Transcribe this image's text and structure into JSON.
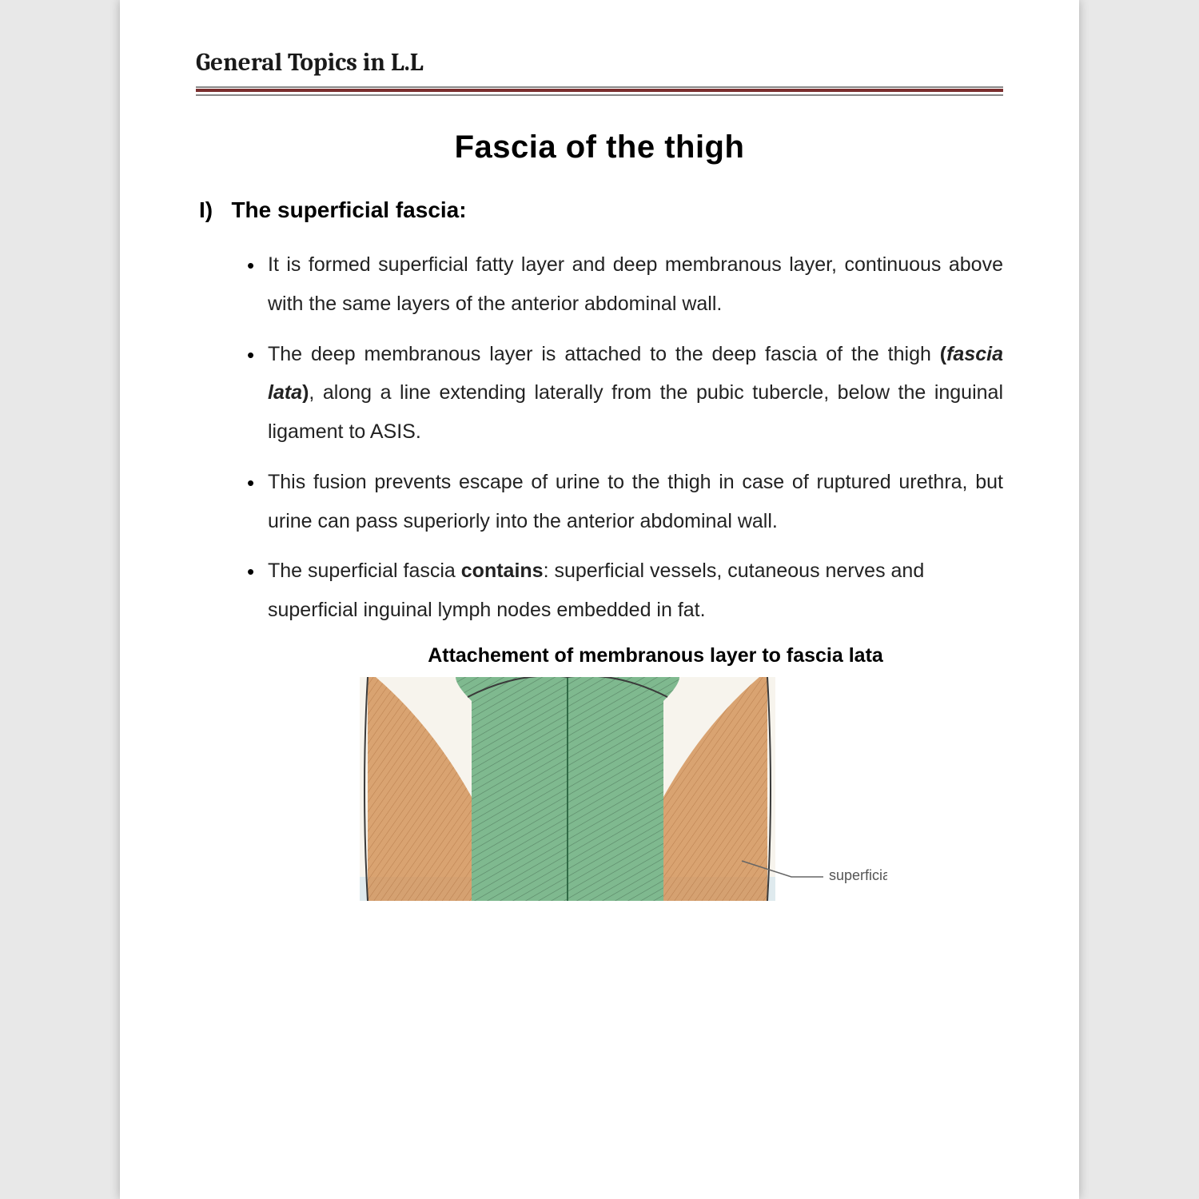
{
  "header": {
    "text": "General Topics in L.L"
  },
  "title": "Fascia of the thigh",
  "section": {
    "number": "I)",
    "heading": "The superficial fascia:"
  },
  "bullets": [
    {
      "runs": [
        {
          "t": "It is formed superficial fatty layer and deep membranous layer, continuous above with the same layers of the anterior abdominal wall."
        }
      ]
    },
    {
      "runs": [
        {
          "t": "The deep membranous layer is attached to the deep fascia of the thigh "
        },
        {
          "t": "(",
          "cls": "b"
        },
        {
          "t": "fascia lata",
          "cls": "bi"
        },
        {
          "t": ")",
          "cls": "b"
        },
        {
          "t": ", along a line extending laterally from the pubic tubercle, below the inguinal ligament to ASIS."
        }
      ]
    },
    {
      "runs": [
        {
          "t": " This fusion prevents escape of urine to the thigh in case of ruptured urethra, but urine can pass superiorly into the anterior abdominal wall."
        }
      ]
    },
    {
      "runs": [
        {
          "t": "The superficial fascia "
        },
        {
          "t": "contains",
          "cls": "b"
        },
        {
          "t": ": superficial vessels, cutaneous nerves and superficial inguinal lymph nodes embedded in fat."
        }
      ],
      "justify": false
    }
  ],
  "figure": {
    "caption": "Attachement of membranous layer to fascia lata",
    "label_right": "superficial fascia",
    "colors": {
      "bg": "#f7f4ed",
      "green_fill": "#7fb98f",
      "green_stroke": "#2f6b45",
      "orange_fill": "#d4945a",
      "orange_stroke": "#9a5a2a",
      "blue_fill": "#cfe3ef",
      "outline": "#3a3a3a",
      "hatch": "#3a5a44",
      "leader": "#666"
    }
  },
  "rule_color": "#7a2e2e"
}
